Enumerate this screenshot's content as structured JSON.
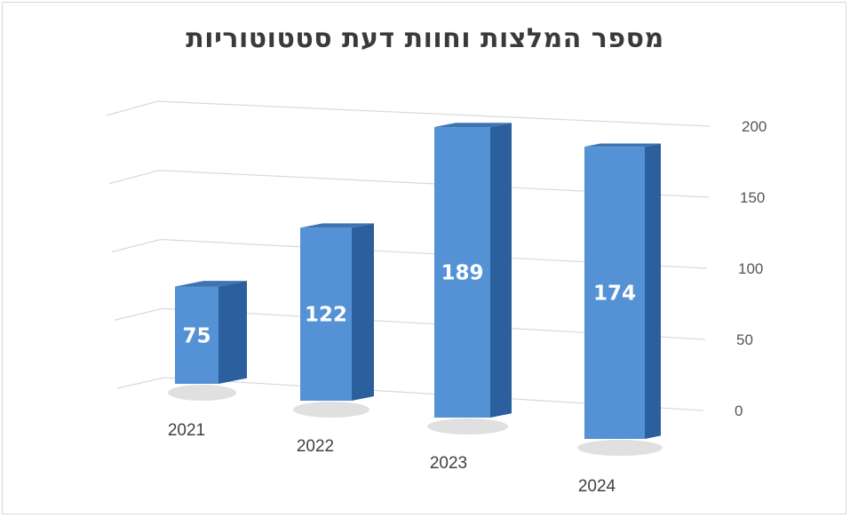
{
  "chart_data": {
    "type": "bar",
    "title": "מספר המלצות וחוות דעת סטטוטוריות",
    "categories": [
      "2021",
      "2022",
      "2023",
      "2024"
    ],
    "values": [
      75,
      122,
      189,
      174
    ],
    "data_labels": [
      "75",
      "122",
      "189",
      "174"
    ],
    "yticks": [
      "0",
      "50",
      "100",
      "150",
      "200"
    ],
    "ylim": [
      0,
      200
    ],
    "grid": true,
    "style": "3d-column",
    "colors": {
      "front": "#5592d5",
      "side": "#2c5f9e",
      "top": "#3f74b4",
      "grid": "#d9d9d9"
    }
  }
}
